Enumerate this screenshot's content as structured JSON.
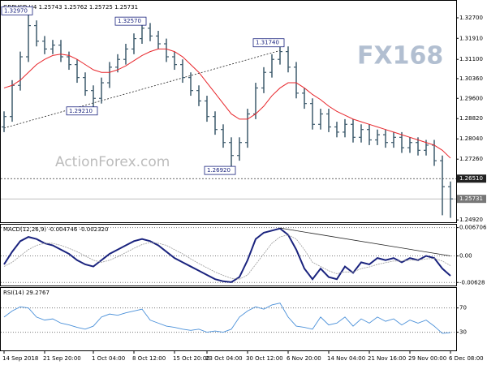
{
  "chart_data": [
    {
      "type": "ohlc",
      "title": "GBPUSD,H4  1.25743 1.25762 1.25725 1.25731",
      "ylim": [
        1.248,
        1.3323
      ],
      "yticks": [
        {
          "value": 1.327,
          "label": "1.32700"
        },
        {
          "value": 1.3191,
          "label": "1.31910"
        },
        {
          "value": 1.311,
          "label": "1.31100"
        },
        {
          "value": 1.3036,
          "label": "1.30360"
        },
        {
          "value": 1.296,
          "label": "1.29600"
        },
        {
          "value": 1.2882,
          "label": "1.28820"
        },
        {
          "value": 1.2804,
          "label": "1.28040"
        },
        {
          "value": 1.2726,
          "label": "1.27260"
        },
        {
          "value": 1.2492,
          "label": "1.24920"
        }
      ],
      "color": "#3d5a6c",
      "open": [
        1.285,
        1.289,
        1.301,
        1.312,
        1.324,
        1.318,
        1.315,
        1.3165,
        1.312,
        1.309,
        1.304,
        1.299,
        1.296,
        1.302,
        1.308,
        1.311,
        1.315,
        1.319,
        1.323,
        1.32,
        1.317,
        1.312,
        1.309,
        1.304,
        1.299,
        1.295,
        1.289,
        1.284,
        1.279,
        1.274,
        1.279,
        1.29,
        1.3,
        1.306,
        1.311,
        1.314,
        1.308,
        1.298,
        1.294,
        1.286,
        1.29,
        1.285,
        1.283,
        1.286,
        1.281,
        1.284,
        1.28,
        1.282,
        1.279,
        1.281,
        1.277,
        1.279,
        1.276,
        1.278,
        1.272,
        1.262
      ],
      "high": [
        1.291,
        1.303,
        1.314,
        1.3297,
        1.326,
        1.32,
        1.3185,
        1.3185,
        1.314,
        1.311,
        1.306,
        1.301,
        1.304,
        1.31,
        1.313,
        1.317,
        1.321,
        1.3257,
        1.325,
        1.322,
        1.319,
        1.314,
        1.311,
        1.306,
        1.301,
        1.297,
        1.291,
        1.286,
        1.281,
        1.281,
        1.292,
        1.302,
        1.308,
        1.313,
        1.3174,
        1.316,
        1.31,
        1.3,
        1.296,
        1.292,
        1.292,
        1.287,
        1.288,
        1.288,
        1.286,
        1.286,
        1.284,
        1.284,
        1.283,
        1.283,
        1.281,
        1.281,
        1.28,
        1.28,
        1.274,
        1.264
      ],
      "low": [
        1.283,
        1.287,
        1.299,
        1.31,
        1.316,
        1.313,
        1.313,
        1.31,
        1.307,
        1.302,
        1.297,
        1.2921,
        1.294,
        1.3,
        1.306,
        1.309,
        1.313,
        1.317,
        1.318,
        1.315,
        1.31,
        1.307,
        1.302,
        1.297,
        1.293,
        1.287,
        1.282,
        1.277,
        1.2692,
        1.272,
        1.277,
        1.288,
        1.298,
        1.304,
        1.309,
        1.306,
        1.296,
        1.292,
        1.284,
        1.284,
        1.283,
        1.281,
        1.281,
        1.279,
        1.279,
        1.278,
        1.278,
        1.277,
        1.277,
        1.275,
        1.275,
        1.274,
        1.274,
        1.27,
        1.251,
        1.25
      ],
      "close": [
        1.289,
        1.301,
        1.312,
        1.324,
        1.318,
        1.315,
        1.3165,
        1.312,
        1.309,
        1.304,
        1.299,
        1.296,
        1.302,
        1.308,
        1.311,
        1.315,
        1.319,
        1.323,
        1.32,
        1.317,
        1.312,
        1.309,
        1.304,
        1.299,
        1.295,
        1.289,
        1.284,
        1.279,
        1.274,
        1.279,
        1.29,
        1.3,
        1.306,
        1.311,
        1.314,
        1.308,
        1.298,
        1.294,
        1.286,
        1.29,
        1.285,
        1.283,
        1.286,
        1.281,
        1.284,
        1.28,
        1.282,
        1.279,
        1.281,
        1.277,
        1.279,
        1.276,
        1.278,
        1.272,
        1.262,
        1.2573
      ],
      "ma": {
        "color": "#e8262b",
        "values": [
          1.3,
          1.301,
          1.303,
          1.306,
          1.309,
          1.311,
          1.3125,
          1.313,
          1.3125,
          1.311,
          1.309,
          1.307,
          1.306,
          1.306,
          1.307,
          1.3085,
          1.3105,
          1.3125,
          1.314,
          1.315,
          1.315,
          1.314,
          1.312,
          1.309,
          1.306,
          1.302,
          1.298,
          1.294,
          1.29,
          1.288,
          1.288,
          1.29,
          1.293,
          1.297,
          1.3,
          1.302,
          1.302,
          1.3,
          1.2975,
          1.2955,
          1.293,
          1.291,
          1.2895,
          1.288,
          1.287,
          1.286,
          1.285,
          1.284,
          1.283,
          1.282,
          1.281,
          1.28,
          1.279,
          1.278,
          1.276,
          1.273
        ]
      },
      "levels": [
        {
          "value": 1.2651,
          "label": "1.26510",
          "style": "dashed"
        },
        {
          "value": 1.25731,
          "style": "solid"
        }
      ],
      "annotations": [
        {
          "value": 1.3297,
          "label": "1.32970"
        },
        {
          "value": 1.3257,
          "label": "1.32570"
        },
        {
          "value": 1.3174,
          "label": "1.31740"
        },
        {
          "value": 1.2921,
          "label": "1.29210"
        },
        {
          "value": 1.2692,
          "label": "1.26920"
        }
      ],
      "trendline": {
        "x": [
          0,
          34
        ],
        "y": [
          1.2846,
          1.3144
        ]
      },
      "watermarks": [
        "FX168",
        "ActionForex.com"
      ]
    },
    {
      "type": "macd",
      "title": "MACD(12,26,9) -0.004746 -0.002320",
      "ylim": [
        -0.007,
        0.0074
      ],
      "yticks": [
        0.006706,
        {
          "value": 0,
          "label": "0.00"
        },
        -0.00628
      ],
      "grid": true,
      "series": [
        {
          "color": "#1a237e",
          "values": [
            -0.002,
            0.001,
            0.0035,
            0.0045,
            0.004,
            0.003,
            0.0025,
            0.0015,
            0.0005,
            -0.001,
            -0.002,
            -0.0025,
            -0.001,
            0.0005,
            0.0015,
            0.0025,
            0.0035,
            0.004,
            0.0035,
            0.0025,
            0.001,
            -0.0005,
            -0.0015,
            -0.0025,
            -0.0035,
            -0.0045,
            -0.0055,
            -0.006,
            -0.0062,
            -0.005,
            -0.001,
            0.004,
            0.0055,
            0.006,
            0.0065,
            0.005,
            0.0015,
            -0.003,
            -0.0055,
            -0.003,
            -0.005,
            -0.0055,
            -0.0025,
            -0.004,
            -0.0015,
            -0.002,
            -0.0005,
            -0.001,
            -0.0005,
            -0.0015,
            -0.0005,
            -0.001,
            0.0,
            -0.0005,
            -0.003,
            -0.0047
          ]
        },
        {
          "color": "#9a9a9a",
          "values": [
            -0.0025,
            -0.0015,
            0.0,
            0.0015,
            0.0025,
            0.003,
            0.003,
            0.0025,
            0.0018,
            0.001,
            0.0,
            -0.001,
            -0.0015,
            -0.001,
            -0.0002,
            0.0008,
            0.0018,
            0.0027,
            0.0032,
            0.003,
            0.0025,
            0.0015,
            0.0005,
            -0.0007,
            -0.0018,
            -0.0028,
            -0.0038,
            -0.0046,
            -0.0053,
            -0.0055,
            -0.0045,
            -0.002,
            0.0005,
            0.003,
            0.0045,
            0.005,
            0.004,
            0.0015,
            -0.0015,
            -0.0025,
            -0.0035,
            -0.0042,
            -0.0038,
            -0.0038,
            -0.003,
            -0.0026,
            -0.002,
            -0.0016,
            -0.0012,
            -0.0012,
            -0.001,
            -0.001,
            -0.0007,
            -0.0006,
            -0.0012,
            -0.0023
          ]
        }
      ],
      "trendline": {
        "x": [
          34,
          55
        ],
        "y": [
          0.0066,
          0.0
        ]
      }
    },
    {
      "type": "rsi",
      "title": "RSI(14) 29.2767",
      "ylim": [
        0,
        103
      ],
      "yticks": [
        70,
        30
      ],
      "grid": true,
      "color": "#4a90d9",
      "values": [
        55,
        65,
        72,
        70,
        55,
        50,
        52,
        45,
        42,
        38,
        35,
        40,
        55,
        60,
        58,
        62,
        65,
        68,
        50,
        45,
        40,
        38,
        35,
        33,
        35,
        30,
        32,
        30,
        35,
        55,
        65,
        72,
        68,
        75,
        78,
        55,
        40,
        38,
        35,
        55,
        42,
        45,
        55,
        40,
        52,
        45,
        55,
        48,
        52,
        42,
        50,
        45,
        50,
        40,
        28,
        29.2767
      ],
      "xticks": [
        {
          "value": 0,
          "label": "14 Sep 2018"
        },
        {
          "value": 5,
          "label": "21 Sep 20:00"
        },
        {
          "value": 11,
          "label": "1 Oct 04:00"
        },
        {
          "value": 16,
          "label": "8 Oct 12:00"
        },
        {
          "value": 21,
          "label": "15 Oct 20:00"
        },
        {
          "value": 25,
          "label": "23 Oct 04:00"
        },
        {
          "value": 30,
          "label": "30 Oct 12:00"
        },
        {
          "value": 35,
          "label": "6 Nov 20:00"
        },
        {
          "value": 40,
          "label": "14 Nov 04:00"
        },
        {
          "value": 45,
          "label": "21 Nov 16:00"
        },
        {
          "value": 50,
          "label": "29 Nov 00:00"
        },
        {
          "value": 55,
          "label": "6 Dec 08:00"
        }
      ]
    }
  ]
}
